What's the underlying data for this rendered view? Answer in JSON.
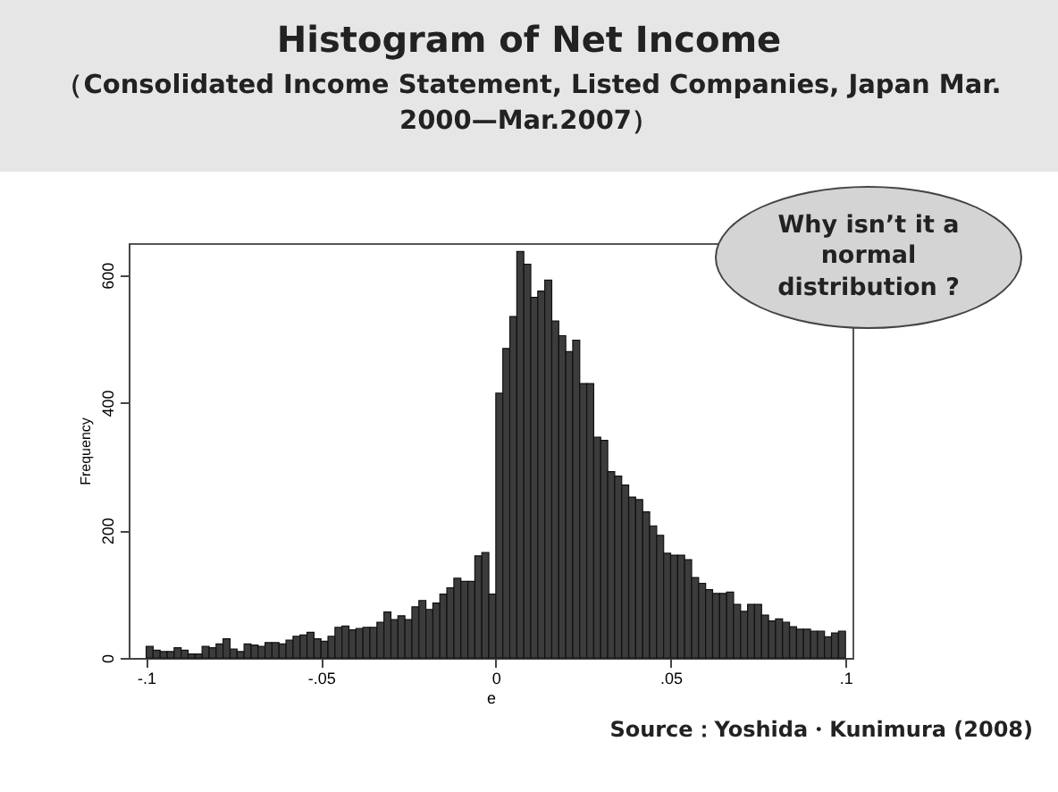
{
  "chart_data": {
    "type": "histogram",
    "title": "Histogram of Net Income",
    "subtitle": "（Consolidated Income Statement, Listed Companies, Japan Mar. 2000—Mar.2007）",
    "xlabel": "e",
    "ylabel": "Frequency",
    "annotations": [
      "Why isn’t it  a normal distribution ?",
      "Source：Yoshida・Kunimura (2008)"
    ],
    "bins": [
      -0.1,
      -0.098,
      -0.096,
      -0.094,
      -0.092,
      -0.09,
      -0.088,
      -0.086,
      -0.084,
      -0.082,
      -0.08,
      -0.078,
      -0.076,
      -0.074,
      -0.072,
      -0.07,
      -0.068,
      -0.066,
      -0.064,
      -0.062,
      -0.06,
      -0.058,
      -0.056,
      -0.054,
      -0.052,
      -0.05,
      -0.048,
      -0.046,
      -0.044,
      -0.042,
      -0.04,
      -0.038,
      -0.036,
      -0.034,
      -0.032,
      -0.03,
      -0.028,
      -0.026,
      -0.024,
      -0.022,
      -0.02,
      -0.018,
      -0.016,
      -0.014,
      -0.012,
      -0.01,
      -0.008,
      -0.006,
      -0.004,
      -0.002,
      0,
      0.002,
      0.004,
      0.006,
      0.008,
      0.01,
      0.012,
      0.014,
      0.016,
      0.018,
      0.02,
      0.022,
      0.024,
      0.026,
      0.028,
      0.03,
      0.032,
      0.034,
      0.036,
      0.038,
      0.04,
      0.042,
      0.044,
      0.046,
      0.048,
      0.05,
      0.052,
      0.054,
      0.056,
      0.058,
      0.06,
      0.062,
      0.064,
      0.066,
      0.068,
      0.07,
      0.072,
      0.074,
      0.076,
      0.078,
      0.08,
      0.082,
      0.084,
      0.086,
      0.088,
      0.09,
      0.092,
      0.094,
      0.096,
      0.098,
      0.1
    ],
    "values": [
      18,
      12,
      10,
      10,
      16,
      12,
      6,
      6,
      18,
      16,
      22,
      30,
      14,
      10,
      22,
      20,
      18,
      24,
      24,
      22,
      28,
      34,
      36,
      40,
      30,
      26,
      34,
      48,
      50,
      44,
      46,
      48,
      48,
      56,
      72,
      60,
      66,
      60,
      80,
      90,
      76,
      86,
      100,
      110,
      125,
      120,
      120,
      160,
      165,
      100,
      415,
      485,
      535,
      637,
      617,
      565,
      575,
      592,
      528,
      505,
      480,
      498,
      430,
      430,
      346,
      341,
      292,
      285,
      271,
      252,
      248,
      229,
      207,
      192,
      164,
      161,
      161,
      154,
      126,
      117,
      107,
      101,
      101,
      103,
      84,
      73,
      84,
      84,
      67,
      58,
      61,
      56,
      49,
      45,
      45,
      42,
      42,
      33,
      39,
      42
    ],
    "color": "#3c3c3c",
    "xlim": [
      -0.105,
      0.102
    ],
    "xticks": [
      {
        "value": -0.1,
        "label": "-.1"
      },
      {
        "value": -0.05,
        "label": "-.05"
      },
      {
        "value": 0,
        "label": "0"
      },
      {
        "value": 0.05,
        "label": ".05"
      },
      {
        "value": 0.1,
        "label": ".1"
      }
    ],
    "ylim": [
      0,
      650
    ],
    "yticks": [
      0,
      200,
      400,
      600
    ],
    "grid": false
  }
}
